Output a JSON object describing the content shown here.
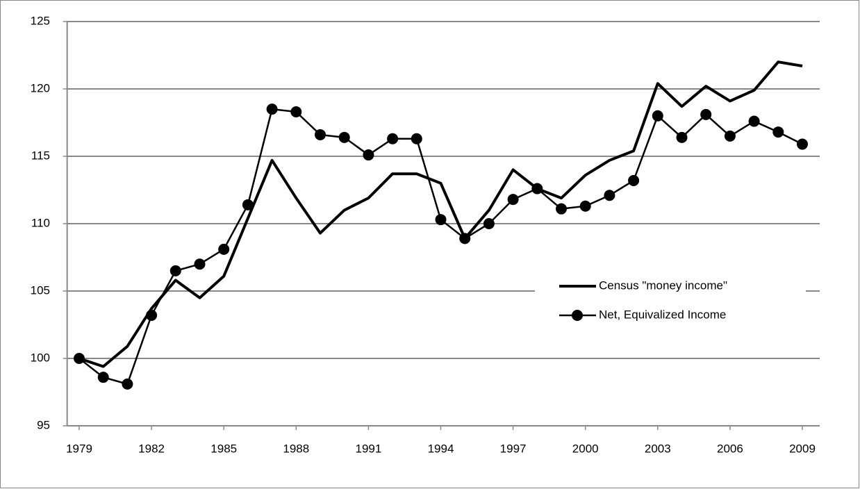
{
  "chart_data": {
    "type": "line",
    "x": [
      1979,
      1980,
      1981,
      1982,
      1983,
      1984,
      1985,
      1986,
      1987,
      1988,
      1989,
      1990,
      1991,
      1992,
      1993,
      1994,
      1995,
      1996,
      1997,
      1998,
      1999,
      2000,
      2001,
      2002,
      2003,
      2004,
      2005,
      2006,
      2007,
      2008,
      2009
    ],
    "series": [
      {
        "name": "Census \"money income\"",
        "color": "#000000",
        "marker": false,
        "values": [
          100,
          99.4,
          100.9,
          103.7,
          105.8,
          104.5,
          106.1,
          110.4,
          114.7,
          111.9,
          109.3,
          111.0,
          111.9,
          113.7,
          113.7,
          113.0,
          108.9,
          111.0,
          114.0,
          112.6,
          111.9,
          113.6,
          114.7,
          115.4,
          120.4,
          118.7,
          120.2,
          119.1,
          119.9,
          122.0,
          121.7
        ]
      },
      {
        "name": "Net, Equivalized Income",
        "color": "#000000",
        "marker": true,
        "values": [
          100,
          98.6,
          98.1,
          103.2,
          106.5,
          107.0,
          108.1,
          111.4,
          118.5,
          118.3,
          116.6,
          116.4,
          115.1,
          116.3,
          116.3,
          110.3,
          108.9,
          110.0,
          111.8,
          112.6,
          111.1,
          111.3,
          112.1,
          113.2,
          118.0,
          116.4,
          118.1,
          116.5,
          117.6,
          116.8,
          115.9
        ]
      }
    ],
    "xlim": [
      1978.5,
      2009.5
    ],
    "xticks": [
      1979,
      1982,
      1985,
      1988,
      1991,
      1994,
      1997,
      2000,
      2003,
      2006,
      2009
    ],
    "ylim": [
      95,
      125
    ],
    "yticks": [
      95,
      100,
      105,
      110,
      115,
      120,
      125
    ],
    "grid": true,
    "legend": "right"
  }
}
